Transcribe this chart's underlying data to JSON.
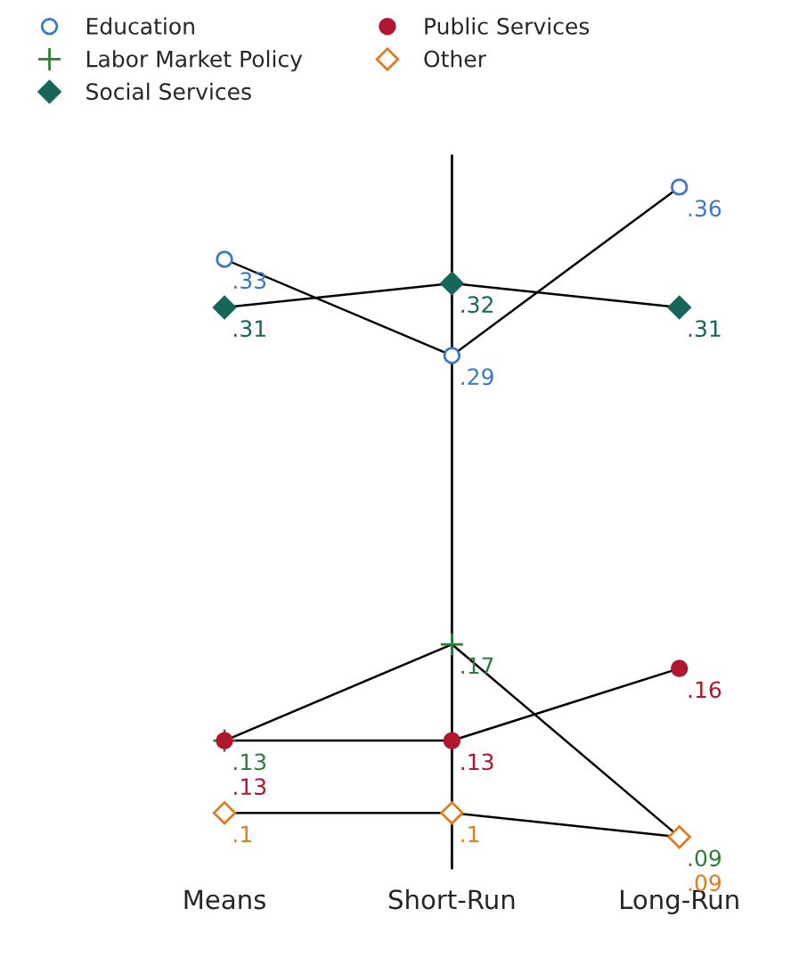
{
  "chart_data": {
    "type": "line",
    "categories": [
      "Means",
      "Short-Run",
      "Long-Run"
    ],
    "series": [
      {
        "name": "Education",
        "color": "#3b78c4",
        "marker": "circle_open",
        "values": [
          0.33,
          0.29,
          0.36
        ],
        "value_labels": [
          ".33",
          ".29",
          ".36"
        ]
      },
      {
        "name": "Labor Market Policy",
        "color": "#2e7d3a",
        "marker": "cross",
        "values": [
          0.13,
          0.17,
          0.09
        ],
        "value_labels": [
          ".13",
          ".17",
          ".09"
        ]
      },
      {
        "name": "Social Services",
        "color": "#17665a",
        "marker": "diamond",
        "values": [
          0.31,
          0.32,
          0.31
        ],
        "value_labels": [
          ".31",
          ".32",
          ".31"
        ]
      },
      {
        "name": "Public Services",
        "color": "#b0172e",
        "marker": "circle",
        "values": [
          0.13,
          0.13,
          0.16
        ],
        "value_labels": [
          ".13",
          ".13",
          ".16"
        ]
      },
      {
        "name": "Other",
        "color": "#e07b20",
        "marker": "diamond_open",
        "values": [
          0.1,
          0.1,
          0.09
        ],
        "value_labels": [
          ".1",
          ".1",
          ".09"
        ]
      }
    ],
    "ref_lines": [
      {
        "axis": "x",
        "value": "Short-Run"
      }
    ],
    "legend": "top left",
    "grid": false,
    "tick_labels": "x"
  }
}
